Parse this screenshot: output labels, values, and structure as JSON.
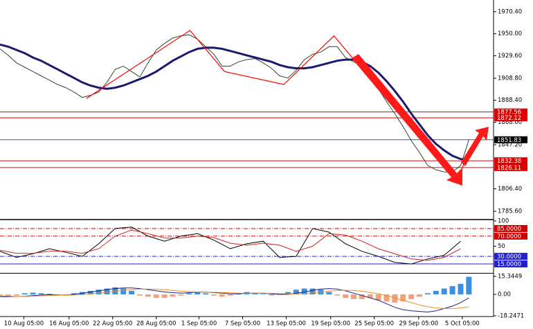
{
  "chart_data": [
    {
      "type": "line",
      "x": [
        0,
        1,
        2,
        3,
        4,
        5,
        6,
        7,
        8,
        9,
        10,
        11,
        12,
        13,
        14,
        15,
        16,
        17,
        18,
        19,
        20,
        21,
        22,
        23,
        24,
        25,
        26,
        27,
        28,
        29,
        30,
        31,
        32,
        33,
        34,
        35,
        36,
        37,
        38,
        39,
        40,
        41,
        42,
        43,
        44,
        45,
        46,
        47,
        48,
        49,
        50,
        51,
        52,
        53,
        54,
        55,
        56,
        57
      ],
      "series": [
        {
          "color": "#2e4a2e",
          "values": [
            1936,
            1930,
            1923,
            1919,
            1915,
            1911,
            1907,
            1903,
            1900,
            1896,
            1891,
            1893,
            1896,
            1905,
            1917,
            1920,
            1915,
            1910,
            1923,
            1935,
            1941,
            1946,
            1948,
            1949,
            1945,
            1938,
            1931,
            1920,
            1920,
            1924,
            1926,
            1927,
            1923,
            1918,
            1911,
            1909,
            1916,
            1926,
            1931,
            1933,
            1938,
            1938,
            1928,
            1924,
            1920,
            1909,
            1899,
            1887,
            1876,
            1864,
            1851,
            1840,
            1828,
            1824,
            1822,
            1822,
            1828,
            1852
          ]
        },
        {
          "color": "#191970",
          "values": [
            1940,
            1938,
            1935,
            1932,
            1928,
            1925,
            1921,
            1917,
            1913,
            1909,
            1905,
            1902,
            1900,
            1899,
            1900,
            1902,
            1905,
            1908,
            1911,
            1915,
            1920,
            1925,
            1929,
            1933,
            1936,
            1937,
            1937,
            1936,
            1934,
            1932,
            1930,
            1928,
            1926,
            1924,
            1921,
            1919,
            1918,
            1918,
            1919,
            1921,
            1923,
            1925,
            1926,
            1926,
            1924,
            1920,
            1914,
            1906,
            1897,
            1887,
            1876,
            1866,
            1856,
            1848,
            1842,
            1837,
            1834,
            1833
          ]
        }
      ],
      "zigzag": {
        "color": "#ff0000",
        "x": [
          10.5,
          23.1,
          27.3,
          34.5,
          40.6,
          55.6,
          56.4
        ],
        "values": [
          1890,
          1953,
          1915,
          1903,
          1948,
          1812,
          1830
        ]
      },
      "levels": [
        {
          "value": 1877.56,
          "color": "#e00000"
        },
        {
          "value": 1872.12,
          "color": "#e00000"
        },
        {
          "value": 1851.83,
          "color": "#3a4fb0",
          "box": "#000000"
        },
        {
          "value": 1832.38,
          "color": "#e00000"
        },
        {
          "value": 1826.11,
          "color": "#e00000"
        }
      ],
      "xlim": [
        0,
        60
      ],
      "ylim": [
        1778.6,
        1981.2
      ],
      "yticks": [
        {
          "value": 1970.4,
          "label": "1970.40"
        },
        {
          "value": 1950,
          "label": "1950.00"
        },
        {
          "value": 1929.6,
          "label": "1929.60"
        },
        {
          "value": 1908.8,
          "label": "1908.80"
        },
        {
          "value": 1888.4,
          "label": "1888.40"
        },
        {
          "value": 1868,
          "label": "1868.00"
        },
        {
          "value": 1847.2,
          "label": "1847.20"
        },
        {
          "value": 1806.4,
          "label": "1806.40"
        },
        {
          "value": 1785.6,
          "label": "1785.60"
        }
      ],
      "xticks": [
        {
          "value": 2.9,
          "label": "10 Aug 05:00"
        },
        {
          "value": 8.4,
          "label": "16 Aug 05:00"
        },
        {
          "value": 13.7,
          "label": "22 Aug 05:00"
        },
        {
          "value": 19.0,
          "label": "28 Aug 05:00"
        },
        {
          "value": 24.2,
          "label": "1 Sep 05:00"
        },
        {
          "value": 29.5,
          "label": "7 Sep 05:00"
        },
        {
          "value": 34.8,
          "label": "13 Sep 05:00"
        },
        {
          "value": 40.2,
          "label": "19 Sep 05:00"
        },
        {
          "value": 45.5,
          "label": "25 Sep 05:00"
        },
        {
          "value": 50.9,
          "label": "29 Sep 05:00"
        },
        {
          "value": 56.2,
          "label": "5 Oct 05:00"
        }
      ]
    },
    {
      "type": "line",
      "x": [
        0,
        2,
        4,
        6,
        8,
        10,
        12,
        14,
        16,
        18,
        20,
        22,
        24,
        26,
        28,
        30,
        32,
        34,
        36,
        38,
        40,
        42,
        44,
        46,
        48,
        50,
        52,
        54,
        56
      ],
      "series": [
        {
          "color": "#000000",
          "values": [
            40,
            28,
            35,
            45,
            38,
            30,
            55,
            85,
            88,
            70,
            60,
            70,
            75,
            62,
            45,
            55,
            60,
            28,
            30,
            85,
            78,
            55,
            40,
            30,
            18,
            15,
            25,
            32,
            60
          ]
        },
        {
          "color": "#d02020",
          "values": [
            42,
            36,
            36,
            40,
            40,
            36,
            45,
            70,
            82,
            75,
            66,
            66,
            70,
            67,
            56,
            52,
            56,
            52,
            40,
            50,
            75,
            72,
            60,
            45,
            35,
            25,
            22,
            28,
            45
          ]
        }
      ],
      "levels": [
        {
          "value": 85,
          "label": "85.0000",
          "color": "#d00000",
          "dash": true
        },
        {
          "value": 70,
          "label": "70.0000",
          "color": "#d00000",
          "dash": true
        },
        {
          "value": 30,
          "label": "30.0000",
          "color": "#2020d0",
          "dash": true
        },
        {
          "value": 15,
          "label": "15.0000",
          "color": "#2020d0"
        }
      ],
      "xlim": [
        0,
        60
      ],
      "ylim": [
        0,
        100
      ],
      "yticks": [
        100,
        50
      ]
    },
    {
      "type": "bar",
      "x": [
        0,
        1,
        2,
        3,
        4,
        5,
        6,
        7,
        8,
        9,
        10,
        11,
        12,
        13,
        14,
        15,
        16,
        17,
        18,
        19,
        20,
        21,
        22,
        23,
        24,
        25,
        26,
        27,
        28,
        29,
        30,
        31,
        32,
        33,
        34,
        35,
        36,
        37,
        38,
        39,
        40,
        41,
        42,
        43,
        44,
        45,
        46,
        47,
        48,
        49,
        50,
        51,
        52,
        53,
        54,
        55,
        56,
        57
      ],
      "values": [
        -1,
        -1.5,
        -1,
        1,
        1.5,
        1,
        0.5,
        -0.5,
        -1,
        1,
        2,
        3,
        4,
        5,
        6,
        5,
        3,
        -1,
        -2,
        -3,
        -3,
        -2,
        -1,
        1,
        2,
        1,
        -1,
        -2,
        -1,
        1,
        2,
        1,
        0.5,
        -1,
        -0.5,
        2,
        4,
        5,
        5,
        4,
        2,
        -1,
        -3,
        -4,
        -4,
        -3,
        -5,
        -6,
        -7,
        -6,
        -4,
        -2,
        1,
        3,
        5,
        7,
        9,
        15
      ],
      "bar_colors": [
        "#3d8fe0",
        "#f2a17e"
      ],
      "series": [
        {
          "color": "#1a237e",
          "values": [
            -2,
            -2,
            -1.8,
            -1.5,
            -1,
            -0.5,
            -0.3,
            -0.5,
            -0.6,
            0,
            1,
            2,
            3,
            4,
            5,
            5.5,
            5.5,
            5,
            4,
            3,
            2,
            1.5,
            1,
            1.5,
            2,
            2,
            1.5,
            1,
            0.5,
            0.5,
            1,
            1,
            1,
            0.5,
            0,
            0,
            1,
            2,
            3.5,
            4.5,
            5,
            4.5,
            3,
            1,
            -1,
            -3,
            -5,
            -8,
            -11,
            -13,
            -14,
            -14.5,
            -15,
            -14,
            -12,
            -10,
            -7,
            -3
          ]
        },
        {
          "color": "#f08a20",
          "values": [
            -1,
            -1.5,
            -1.8,
            -1.7,
            -1.5,
            -1.2,
            -0.9,
            -0.7,
            -0.6,
            -0.5,
            -0.2,
            0.3,
            1,
            1.8,
            2.6,
            3.4,
            4,
            4.5,
            4.6,
            4.4,
            4,
            3.4,
            2.8,
            2.3,
            2,
            1.9,
            1.8,
            1.6,
            1.3,
            1.1,
            1,
            1,
            1,
            0.9,
            0.7,
            0.5,
            0.5,
            0.8,
            1.3,
            2,
            2.7,
            3.3,
            3.5,
            3.3,
            2.7,
            1.7,
            0.5,
            -1,
            -3,
            -5,
            -7,
            -9,
            -10.5,
            -11.5,
            -12,
            -12,
            -11.5,
            -10.5
          ]
        }
      ],
      "xlim": [
        0,
        60
      ],
      "ylim": [
        -18.2471,
        15.3449
      ],
      "yticks": [
        15.3449,
        {
          "value": 0,
          "label": "0.00"
        },
        -18.2471
      ]
    }
  ]
}
